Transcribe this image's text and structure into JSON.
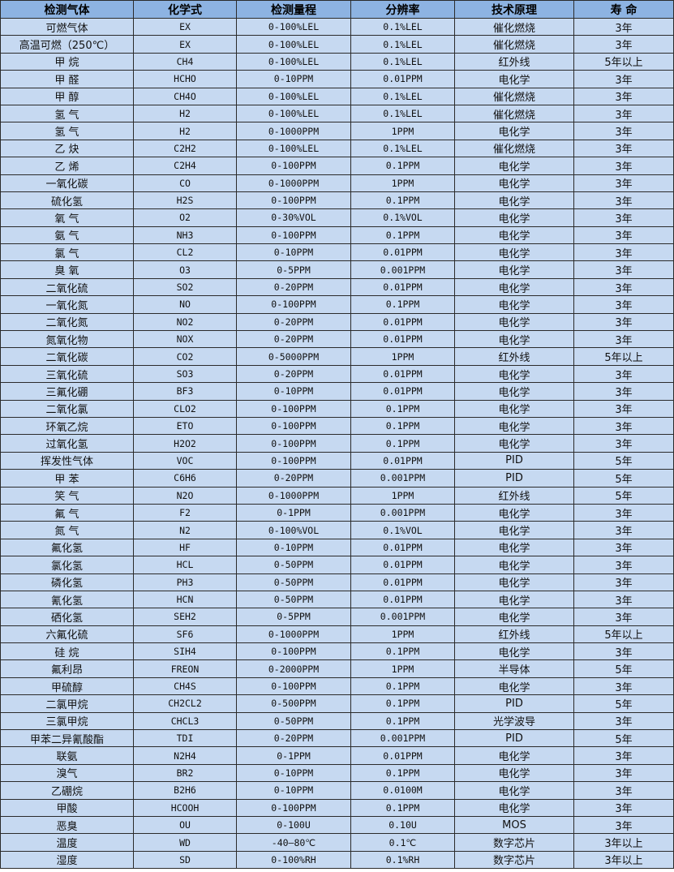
{
  "table": {
    "headers": [
      "检测气体",
      "化学式",
      "检测量程",
      "分辨率",
      "技术原理",
      "寿 命"
    ],
    "rows": [
      [
        "可燃气体",
        "EX",
        "0-100%LEL",
        "0.1%LEL",
        "催化燃烧",
        "3年"
      ],
      [
        "高温可燃（250℃）",
        "EX",
        "0-100%LEL",
        "0.1%LEL",
        "催化燃烧",
        "3年"
      ],
      [
        "甲 烷",
        "CH4",
        "0-100%LEL",
        "0.1%LEL",
        "红外线",
        "5年以上"
      ],
      [
        "甲 醛",
        "HCHO",
        "0-10PPM",
        "0.01PPM",
        "电化学",
        "3年"
      ],
      [
        "甲 醇",
        "CH4O",
        "0-100%LEL",
        "0.1%LEL",
        "催化燃烧",
        "3年"
      ],
      [
        "氢 气",
        "H2",
        "0-100%LEL",
        "0.1%LEL",
        "催化燃烧",
        "3年"
      ],
      [
        "氢 气",
        "H2",
        "0-1000PPM",
        "1PPM",
        "电化学",
        "3年"
      ],
      [
        "乙 炔",
        "C2H2",
        "0-100%LEL",
        "0.1%LEL",
        "催化燃烧",
        "3年"
      ],
      [
        "乙 烯",
        "C2H4",
        "0-100PPM",
        "0.1PPM",
        "电化学",
        "3年"
      ],
      [
        "一氧化碳",
        "CO",
        "0-1000PPM",
        "1PPM",
        "电化学",
        "3年"
      ],
      [
        "硫化氢",
        "H2S",
        "0-100PPM",
        "0.1PPM",
        "电化学",
        "3年"
      ],
      [
        "氧 气",
        "O2",
        "0-30%VOL",
        "0.1%VOL",
        "电化学",
        "3年"
      ],
      [
        "氨 气",
        "NH3",
        "0-100PPM",
        "0.1PPM",
        "电化学",
        "3年"
      ],
      [
        "氯 气",
        "CL2",
        "0-10PPM",
        "0.01PPM",
        "电化学",
        "3年"
      ],
      [
        "臭 氧",
        "O3",
        "0-5PPM",
        "0.001PPM",
        "电化学",
        "3年"
      ],
      [
        "二氧化硫",
        "SO2",
        "0-20PPM",
        "0.01PPM",
        "电化学",
        "3年"
      ],
      [
        "一氧化氮",
        "NO",
        "0-100PPM",
        "0.1PPM",
        "电化学",
        "3年"
      ],
      [
        "二氧化氮",
        "NO2",
        "0-20PPM",
        "0.01PPM",
        "电化学",
        "3年"
      ],
      [
        "氮氧化物",
        "NOX",
        "0-20PPM",
        "0.01PPM",
        "电化学",
        "3年"
      ],
      [
        "二氧化碳",
        "CO2",
        "0-5000PPM",
        "1PPM",
        "红外线",
        "5年以上"
      ],
      [
        "三氧化硫",
        "SO3",
        "0-20PPM",
        "0.01PPM",
        "电化学",
        "3年"
      ],
      [
        "三氟化硼",
        "BF3",
        "0-10PPM",
        "0.01PPM",
        "电化学",
        "3年"
      ],
      [
        "二氧化氯",
        "CLO2",
        "0-100PPM",
        "0.1PPM",
        "电化学",
        "3年"
      ],
      [
        "环氧乙烷",
        "ETO",
        "0-100PPM",
        "0.1PPM",
        "电化学",
        "3年"
      ],
      [
        "过氧化氢",
        "H2O2",
        "0-100PPM",
        "0.1PPM",
        "电化学",
        "3年"
      ],
      [
        "挥发性气体",
        "VOC",
        "0-100PPM",
        "0.01PPM",
        "PID",
        "5年"
      ],
      [
        "甲 苯",
        "C6H6",
        "0-20PPM",
        "0.001PPM",
        "PID",
        "5年"
      ],
      [
        "笑 气",
        "N2O",
        "0-1000PPM",
        "1PPM",
        "红外线",
        "5年"
      ],
      [
        "氟 气",
        "F2",
        "0-1PPM",
        "0.001PPM",
        "电化学",
        "3年"
      ],
      [
        "氮 气",
        "N2",
        "0-100%VOL",
        "0.1%VOL",
        "电化学",
        "3年"
      ],
      [
        "氟化氢",
        "HF",
        "0-10PPM",
        "0.01PPM",
        "电化学",
        "3年"
      ],
      [
        "氯化氢",
        "HCL",
        "0-50PPM",
        "0.01PPM",
        "电化学",
        "3年"
      ],
      [
        "磷化氢",
        "PH3",
        "0-50PPM",
        "0.01PPM",
        "电化学",
        "3年"
      ],
      [
        "氰化氢",
        "HCN",
        "0-50PPM",
        "0.01PPM",
        "电化学",
        "3年"
      ],
      [
        "硒化氢",
        "SEH2",
        "0-5PPM",
        "0.001PPM",
        "电化学",
        "3年"
      ],
      [
        "六氟化硫",
        "SF6",
        "0-1000PPM",
        "1PPM",
        "红外线",
        "5年以上"
      ],
      [
        "硅 烷",
        "SIH4",
        "0-100PPM",
        "0.1PPM",
        "电化学",
        "3年"
      ],
      [
        "氟利昂",
        "FREON",
        "0-2000PPM",
        "1PPM",
        "半导体",
        "5年"
      ],
      [
        "甲硫醇",
        "CH4S",
        "0-100PPM",
        "0.1PPM",
        "电化学",
        "3年"
      ],
      [
        "二氯甲烷",
        "CH2CL2",
        "0-500PPM",
        "0.1PPM",
        "PID",
        "5年"
      ],
      [
        "三氯甲烷",
        "CHCL3",
        "0-50PPM",
        "0.1PPM",
        "光学波导",
        "3年"
      ],
      [
        "甲苯二异氰酸酯",
        "TDI",
        "0-20PPM",
        "0.001PPM",
        "PID",
        "5年"
      ],
      [
        "联氨",
        "N2H4",
        "0-1PPM",
        "0.01PPM",
        "电化学",
        "3年"
      ],
      [
        "溴气",
        "BR2",
        "0-10PPM",
        "0.1PPM",
        "电化学",
        "3年"
      ],
      [
        "乙硼烷",
        "B2H6",
        "0-10PPM",
        "0.0100M",
        "电化学",
        "3年"
      ],
      [
        "甲酸",
        "HCOOH",
        "0-100PPM",
        "0.1PPM",
        "电化学",
        "3年"
      ],
      [
        "恶臭",
        "OU",
        "0-100U",
        "0.10U",
        "MOS",
        "3年"
      ],
      [
        "温度",
        "WD",
        "-40—80℃",
        "0.1℃",
        "数字芯片",
        "3年以上"
      ],
      [
        "湿度",
        "SD",
        "0-100%RH",
        "0.1%RH",
        "数字芯片",
        "3年以上"
      ]
    ]
  },
  "colors": {
    "header_bg": "#8db3e2",
    "row_bg": "#c6d9f1",
    "border": "#2b2b2b"
  }
}
